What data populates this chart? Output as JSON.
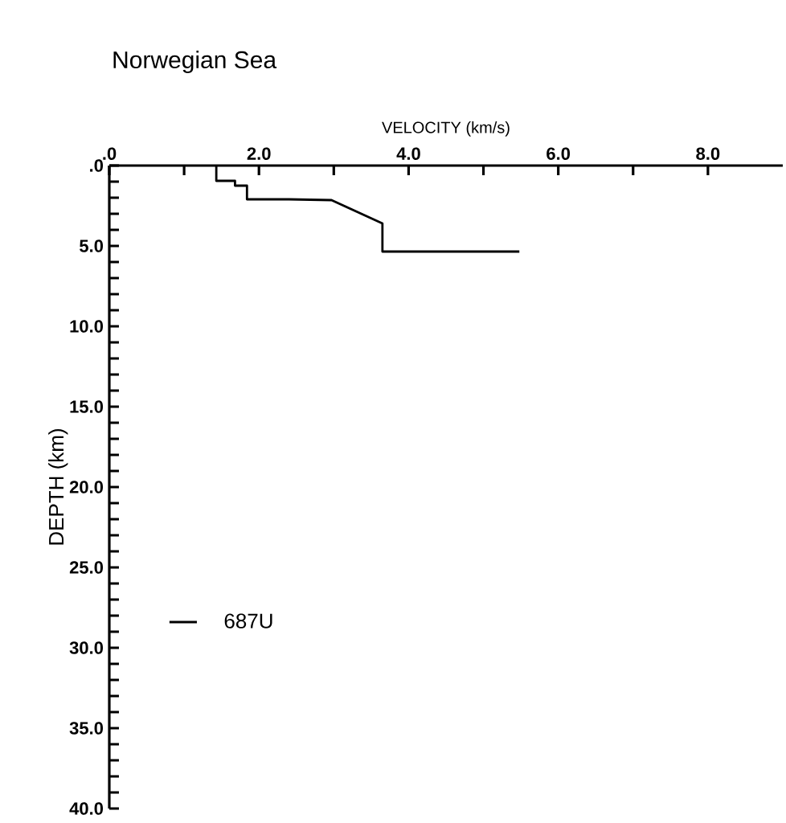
{
  "chart_data": {
    "type": "step",
    "title": "Norwegian Sea",
    "xlabel": "VELOCITY (km/s)",
    "ylabel": "DEPTH (km)",
    "x": [
      1.43,
      1.43,
      1.68,
      1.68,
      1.84,
      1.84,
      2.4,
      2.97,
      3.65,
      3.65,
      5.48
    ],
    "series": [
      {
        "name": "687U",
        "color": "#000000",
        "values": [
          0,
          0.95,
          0.95,
          1.25,
          1.25,
          2.1,
          2.1,
          2.15,
          3.6,
          5.35,
          5.35
        ]
      }
    ],
    "xlim": [
      0,
      9
    ],
    "ylim": [
      40,
      0
    ],
    "xticks": [
      {
        "value": 0,
        "label": ".0"
      },
      {
        "value": 1,
        "label": null
      },
      {
        "value": 2,
        "label": "2.0"
      },
      {
        "value": 3,
        "label": null
      },
      {
        "value": 4,
        "label": "4.0"
      },
      {
        "value": 5,
        "label": null
      },
      {
        "value": 6,
        "label": "6.0"
      },
      {
        "value": 7,
        "label": null
      },
      {
        "value": 8,
        "label": "8.0"
      }
    ],
    "yticks": [
      {
        "value": 0,
        "label": ".0"
      },
      {
        "value": 1,
        "label": null
      },
      {
        "value": 2,
        "label": null
      },
      {
        "value": 3,
        "label": null
      },
      {
        "value": 4,
        "label": null
      },
      {
        "value": 5,
        "label": "5.0"
      },
      {
        "value": 6,
        "label": null
      },
      {
        "value": 7,
        "label": null
      },
      {
        "value": 8,
        "label": null
      },
      {
        "value": 9,
        "label": null
      },
      {
        "value": 10,
        "label": "10.0"
      },
      {
        "value": 11,
        "label": null
      },
      {
        "value": 12,
        "label": null
      },
      {
        "value": 13,
        "label": null
      },
      {
        "value": 14,
        "label": null
      },
      {
        "value": 15,
        "label": "15.0"
      },
      {
        "value": 16,
        "label": null
      },
      {
        "value": 17,
        "label": null
      },
      {
        "value": 18,
        "label": null
      },
      {
        "value": 19,
        "label": null
      },
      {
        "value": 20,
        "label": "20.0"
      },
      {
        "value": 21,
        "label": null
      },
      {
        "value": 22,
        "label": null
      },
      {
        "value": 23,
        "label": null
      },
      {
        "value": 24,
        "label": null
      },
      {
        "value": 25,
        "label": "25.0"
      },
      {
        "value": 26,
        "label": null
      },
      {
        "value": 27,
        "label": null
      },
      {
        "value": 28,
        "label": null
      },
      {
        "value": 29,
        "label": null
      },
      {
        "value": 30,
        "label": "30.0"
      },
      {
        "value": 31,
        "label": null
      },
      {
        "value": 32,
        "label": null
      },
      {
        "value": 33,
        "label": null
      },
      {
        "value": 34,
        "label": null
      },
      {
        "value": 35,
        "label": "35.0"
      },
      {
        "value": 36,
        "label": null
      },
      {
        "value": 37,
        "label": null
      },
      {
        "value": 38,
        "label": null
      },
      {
        "value": 39,
        "label": null
      },
      {
        "value": 40,
        "label": "40.0"
      }
    ],
    "legend": "bottom left",
    "grid": false,
    "marker": "none",
    "line_style": "solid"
  }
}
